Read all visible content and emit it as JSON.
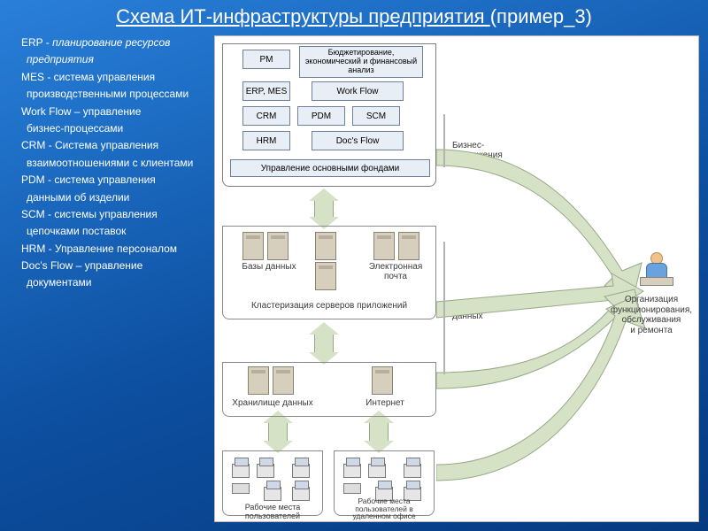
{
  "title_link": "Схема ИТ-инфраструктуры предприятия ",
  "title_suffix": "(пример_3)",
  "legend": [
    {
      "t": "ERP - ",
      "it": "планирование ресурсов"
    },
    {
      "t": "",
      "it": " предприятия",
      "cont": true
    },
    {
      "t": "MES - система управления"
    },
    {
      "t": " производственными процессами",
      "cont": true
    },
    {
      "t": "Work Flow – управление"
    },
    {
      "t": " бизнес-процессами",
      "cont": true
    },
    {
      "t": "CRM - Система управления"
    },
    {
      "t": " взаимоотношениями с клиентами",
      "cont": true
    },
    {
      "t": "PDM - система управления"
    },
    {
      "t": " данными об изделии",
      "cont": true
    },
    {
      "t": "SCM - системы управления"
    },
    {
      "t": " цепочками поставок",
      "cont": true
    },
    {
      "t": "HRM - Управление персоналом"
    },
    {
      "t": "Doc's Flow – управление"
    },
    {
      "t": " документами",
      "cont": true
    }
  ],
  "boxes": {
    "pm": "PM",
    "budget": "Бюджетирование, экономический и финансовый анализ",
    "erpmes": "ERP, MES",
    "workflow": "Work Flow",
    "crm": "CRM",
    "pdm": "PDM",
    "scm": "SCM",
    "hrm": "HRM",
    "docflow": "Doc's Flow",
    "assets": "Управление основными фондами"
  },
  "tier_labels": {
    "biz": "Бизнес-\nприложения",
    "db": "Базы данных",
    "mail": "Электронная почта",
    "appcluster": "Кластеризация серверов приложений",
    "dpc": "Центр обработки\nданных",
    "storage": "Хранилище данных",
    "internet": "Интернет",
    "ws_local": "Рабочие места\nпользователей",
    "ws_remote": "Рабочие места\nпользователей в\nудаленном офисе",
    "org": "Организация\nфункционирования,\nобслуживания\nи ремонта"
  },
  "colors": {
    "box_bg": "#e8eef6",
    "box_border": "#6f7f97",
    "arrow_fill": "#d5e2c6",
    "arrow_border": "#97a886",
    "server_bg": "#d7cfbe",
    "server_border": "#8a8372"
  }
}
